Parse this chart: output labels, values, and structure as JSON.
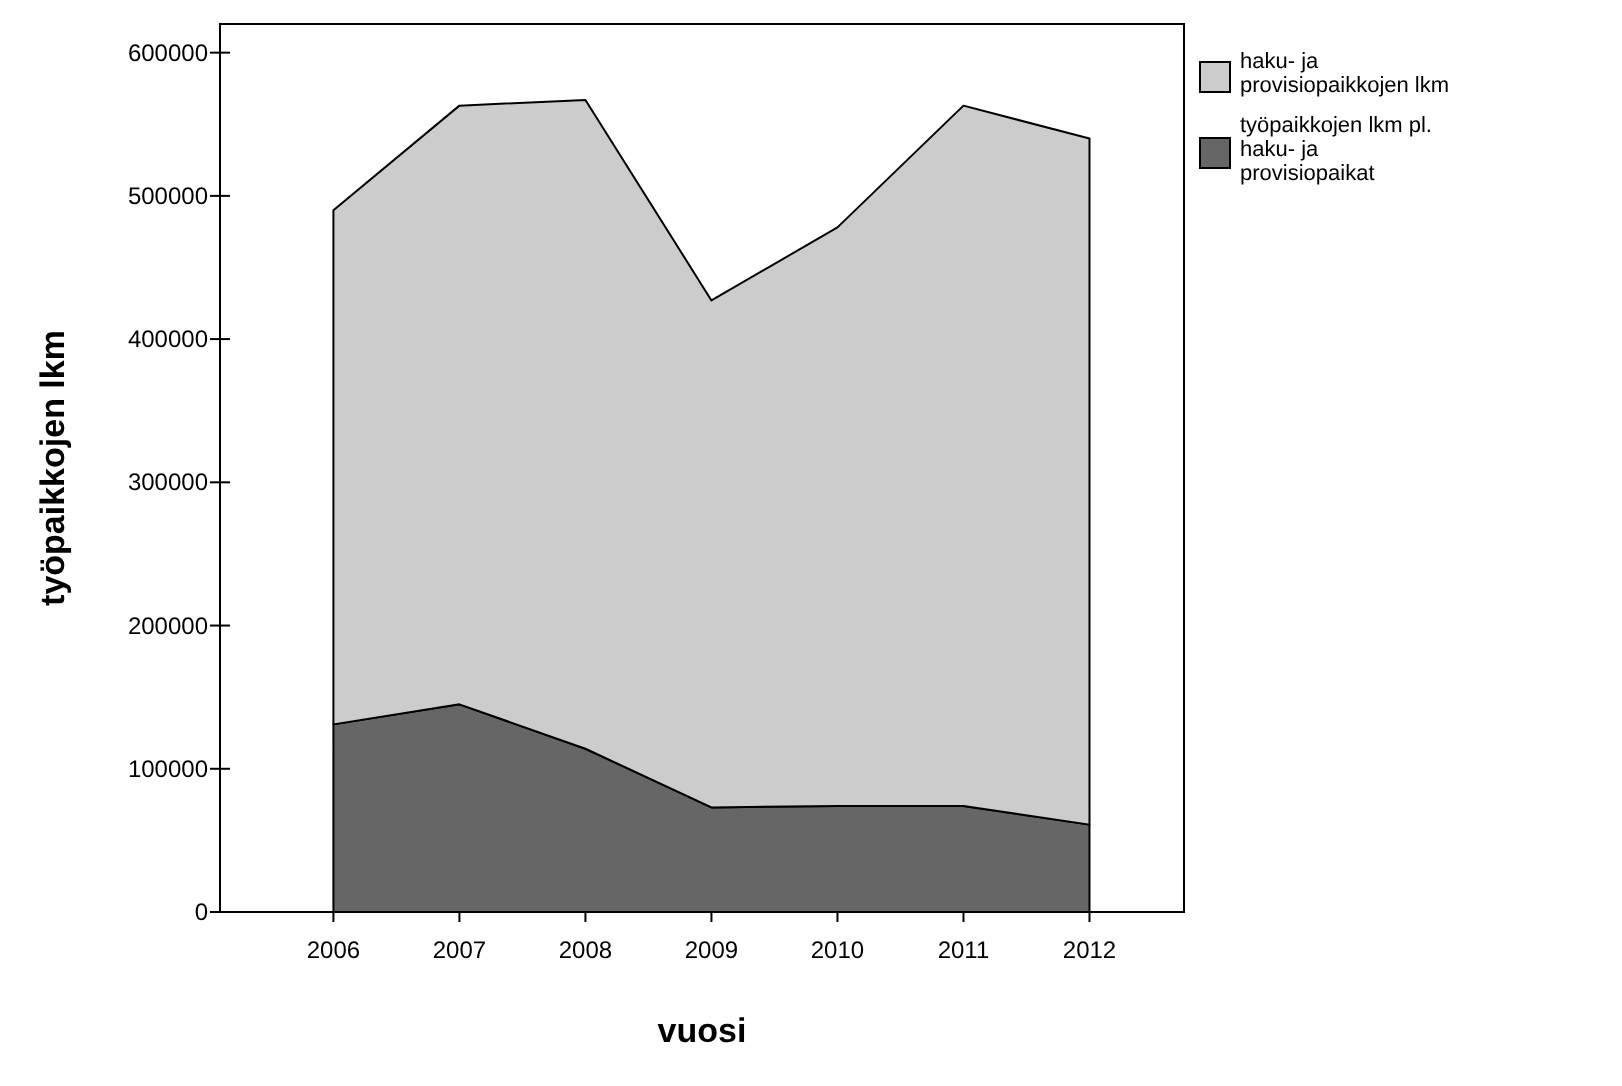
{
  "chart_data": {
    "type": "area",
    "stacked": true,
    "xlabel": "vuosi",
    "ylabel": "työpaikkojen lkm",
    "categories": [
      "2006",
      "2007",
      "2008",
      "2009",
      "2010",
      "2011",
      "2012"
    ],
    "series": [
      {
        "name": "työpaikkojen lkm pl. haku- ja provisiopaikat",
        "color": "#666666",
        "values": [
          131000,
          145000,
          114000,
          73000,
          74000,
          74000,
          61000
        ]
      },
      {
        "name": "haku- ja provisiopaikkojen lkm",
        "color": "#cccccc",
        "values": [
          359000,
          418000,
          453000,
          354000,
          404000,
          489000,
          479000
        ]
      }
    ],
    "ylim": [
      0,
      620000
    ],
    "yticks": [
      0,
      100000,
      200000,
      300000,
      400000,
      500000,
      600000
    ],
    "legend": "top right"
  }
}
